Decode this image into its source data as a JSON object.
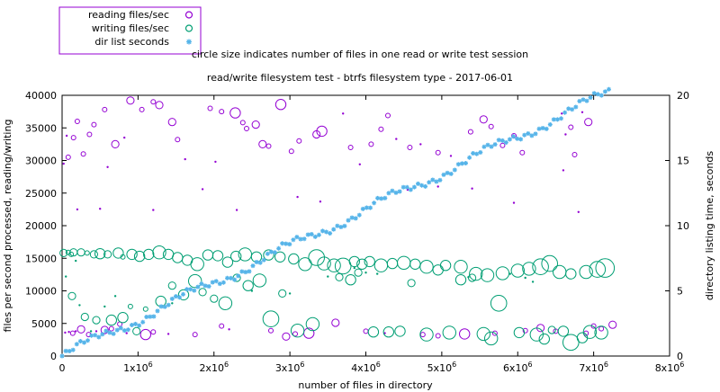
{
  "chart_data": {
    "type": "scatter",
    "title": "read/write filesystem test - btrfs filesystem type - 2017-06-01",
    "subtitle": "circle size indicates number of files in one read or write test session",
    "xlabel": "number of files in directory",
    "ylabel": "files per second processed, reading/writing",
    "y2label": "directory listing time, seconds",
    "xlim": [
      0,
      8000000
    ],
    "ylim": [
      0,
      40000
    ],
    "y2lim": [
      0,
      20
    ],
    "x_ticks": [
      {
        "value": 0,
        "base": "0",
        "exp": ""
      },
      {
        "value": 1000000,
        "base": "1x10",
        "exp": "6"
      },
      {
        "value": 2000000,
        "base": "2x10",
        "exp": "6"
      },
      {
        "value": 3000000,
        "base": "3x10",
        "exp": "6"
      },
      {
        "value": 4000000,
        "base": "4x10",
        "exp": "6"
      },
      {
        "value": 5000000,
        "base": "5x10",
        "exp": "6"
      },
      {
        "value": 6000000,
        "base": "6x10",
        "exp": "6"
      },
      {
        "value": 7000000,
        "base": "7x10",
        "exp": "6"
      },
      {
        "value": 8000000,
        "base": "8x10",
        "exp": "6"
      }
    ],
    "y_ticks": [
      "0",
      "5000",
      "10000",
      "15000",
      "20000",
      "25000",
      "30000",
      "35000",
      "40000"
    ],
    "y2_ticks": [
      "0",
      "5",
      "10",
      "15",
      "20"
    ],
    "legend_position": "top-left",
    "series": [
      {
        "name": "reading files/sec",
        "marker": "circle",
        "color": "#9400d3",
        "axis": "y",
        "points": [
          [
            40000,
            3600,
            1
          ],
          [
            90000,
            3700,
            1
          ],
          [
            140000,
            3500,
            2
          ],
          [
            180000,
            3800,
            1
          ],
          [
            250000,
            4100,
            3
          ],
          [
            350000,
            3300,
            2
          ],
          [
            450000,
            3800,
            1
          ],
          [
            560000,
            4000,
            3
          ],
          [
            650000,
            4200,
            2
          ],
          [
            760000,
            4900,
            2
          ],
          [
            850000,
            3500,
            1
          ],
          [
            1100000,
            3300,
            4
          ],
          [
            1200000,
            3700,
            2
          ],
          [
            1400000,
            3400,
            1
          ],
          [
            1750000,
            3300,
            2
          ],
          [
            2100000,
            4600,
            2
          ],
          [
            2200000,
            4100,
            1
          ],
          [
            2750000,
            3900,
            2
          ],
          [
            2950000,
            3000,
            3
          ],
          [
            3070000,
            3400,
            2
          ],
          [
            3250000,
            3500,
            4
          ],
          [
            3600000,
            5100,
            3
          ],
          [
            4000000,
            3800,
            2
          ],
          [
            4250000,
            3500,
            1
          ],
          [
            4750000,
            3300,
            2
          ],
          [
            4950000,
            3100,
            2
          ],
          [
            5300000,
            3400,
            4
          ],
          [
            5700000,
            3500,
            2
          ],
          [
            6100000,
            3900,
            2
          ],
          [
            6300000,
            4300,
            3
          ],
          [
            6500000,
            3800,
            2
          ],
          [
            6900000,
            3500,
            2
          ],
          [
            7000000,
            4600,
            2
          ],
          [
            7100000,
            4200,
            2
          ],
          [
            7250000,
            4800,
            3
          ],
          [
            20000,
            29500,
            1
          ],
          [
            60000,
            33800,
            1
          ],
          [
            80000,
            30500,
            2
          ],
          [
            150000,
            33500,
            2
          ],
          [
            200000,
            36000,
            2
          ],
          [
            280000,
            31000,
            2
          ],
          [
            360000,
            34000,
            2
          ],
          [
            420000,
            35500,
            2
          ],
          [
            560000,
            37800,
            2
          ],
          [
            600000,
            29000,
            1
          ],
          [
            700000,
            32500,
            3
          ],
          [
            820000,
            33500,
            1
          ],
          [
            900000,
            39200,
            3
          ],
          [
            1050000,
            37800,
            2
          ],
          [
            1200000,
            39000,
            2
          ],
          [
            1280000,
            38500,
            3
          ],
          [
            1450000,
            35900,
            3
          ],
          [
            1520000,
            33200,
            2
          ],
          [
            1620000,
            30200,
            1
          ],
          [
            1950000,
            38000,
            2
          ],
          [
            2020000,
            29800,
            1
          ],
          [
            2100000,
            37500,
            2
          ],
          [
            2280000,
            37300,
            4
          ],
          [
            2380000,
            35800,
            2
          ],
          [
            2430000,
            34900,
            2
          ],
          [
            2550000,
            35500,
            3
          ],
          [
            2640000,
            32500,
            3
          ],
          [
            2720000,
            32200,
            2
          ],
          [
            2880000,
            38600,
            4
          ],
          [
            3020000,
            31400,
            2
          ],
          [
            3120000,
            33000,
            2
          ],
          [
            3350000,
            34000,
            3
          ],
          [
            3420000,
            34500,
            4
          ],
          [
            3700000,
            37200,
            1
          ],
          [
            3800000,
            32000,
            2
          ],
          [
            3920000,
            29400,
            1
          ],
          [
            4070000,
            32500,
            2
          ],
          [
            4200000,
            34800,
            2
          ],
          [
            4290000,
            36900,
            2
          ],
          [
            4400000,
            33300,
            1
          ],
          [
            4580000,
            32000,
            2
          ],
          [
            4720000,
            32500,
            1
          ],
          [
            4950000,
            31200,
            2
          ],
          [
            5120000,
            30700,
            1
          ],
          [
            5380000,
            34400,
            2
          ],
          [
            5550000,
            36300,
            3
          ],
          [
            5650000,
            35200,
            2
          ],
          [
            5800000,
            32300,
            2
          ],
          [
            5950000,
            33800,
            2
          ],
          [
            6060000,
            31200,
            2
          ],
          [
            6580000,
            37200,
            1
          ],
          [
            6630000,
            34000,
            1
          ],
          [
            6700000,
            35100,
            2
          ],
          [
            6930000,
            35900,
            3
          ],
          [
            6850000,
            37400,
            1
          ],
          [
            6750000,
            30900,
            2
          ],
          [
            200000,
            22500,
            1
          ],
          [
            500000,
            22600,
            1
          ],
          [
            1200000,
            22400,
            1
          ],
          [
            1850000,
            25600,
            1
          ],
          [
            2300000,
            22400,
            1
          ],
          [
            3100000,
            24400,
            1
          ],
          [
            3400000,
            23700,
            1
          ],
          [
            4550000,
            25500,
            1
          ],
          [
            4950000,
            26000,
            1
          ],
          [
            5400000,
            25700,
            1
          ],
          [
            5950000,
            23500,
            1
          ],
          [
            6600000,
            28500,
            1
          ],
          [
            6800000,
            22100,
            1
          ]
        ]
      },
      {
        "name": "writing files/sec",
        "marker": "circle",
        "color": "#009e73",
        "axis": "y",
        "points": [
          [
            20000,
            15800,
            3
          ],
          [
            80000,
            15900,
            2
          ],
          [
            120000,
            15600,
            2
          ],
          [
            150000,
            15900,
            3
          ],
          [
            180000,
            14600,
            1
          ],
          [
            250000,
            15900,
            3
          ],
          [
            330000,
            15800,
            2
          ],
          [
            420000,
            15600,
            3
          ],
          [
            500000,
            15700,
            4
          ],
          [
            600000,
            15600,
            3
          ],
          [
            740000,
            15800,
            4
          ],
          [
            800000,
            15200,
            2
          ],
          [
            920000,
            15600,
            4
          ],
          [
            1020000,
            15300,
            4
          ],
          [
            1140000,
            15600,
            4
          ],
          [
            1280000,
            15900,
            5
          ],
          [
            1400000,
            15600,
            4
          ],
          [
            1520000,
            15100,
            4
          ],
          [
            1650000,
            14700,
            4
          ],
          [
            1780000,
            14100,
            5
          ],
          [
            1920000,
            15500,
            4
          ],
          [
            2050000,
            15400,
            4
          ],
          [
            2180000,
            14400,
            4
          ],
          [
            2290000,
            15300,
            4
          ],
          [
            2410000,
            15600,
            5
          ],
          [
            2560000,
            15200,
            4
          ],
          [
            2720000,
            15500,
            4
          ],
          [
            2870000,
            15200,
            4
          ],
          [
            3050000,
            14900,
            4
          ],
          [
            3200000,
            14100,
            5
          ],
          [
            3350000,
            15100,
            6
          ],
          [
            3450000,
            14200,
            5
          ],
          [
            3580000,
            13900,
            5
          ],
          [
            3700000,
            13800,
            6
          ],
          [
            3850000,
            14500,
            4
          ],
          [
            3950000,
            14100,
            4
          ],
          [
            4050000,
            14500,
            4
          ],
          [
            4200000,
            13900,
            5
          ],
          [
            4350000,
            14200,
            4
          ],
          [
            4500000,
            14300,
            5
          ],
          [
            4650000,
            14100,
            4
          ],
          [
            4800000,
            13700,
            5
          ],
          [
            4950000,
            13200,
            4
          ],
          [
            5050000,
            13900,
            4
          ],
          [
            5250000,
            13700,
            5
          ],
          [
            5450000,
            12600,
            5
          ],
          [
            5600000,
            12400,
            5
          ],
          [
            5800000,
            12700,
            5
          ],
          [
            6000000,
            13100,
            5
          ],
          [
            6150000,
            13400,
            5
          ],
          [
            6300000,
            13700,
            6
          ],
          [
            6420000,
            14200,
            6
          ],
          [
            6550000,
            12900,
            5
          ],
          [
            6700000,
            12600,
            4
          ],
          [
            6900000,
            12900,
            5
          ],
          [
            7050000,
            13300,
            6
          ],
          [
            7150000,
            13500,
            7
          ],
          [
            50000,
            12200,
            1
          ],
          [
            130000,
            9200,
            3
          ],
          [
            230000,
            7800,
            1
          ],
          [
            300000,
            6000,
            3
          ],
          [
            380000,
            3800,
            1
          ],
          [
            450000,
            5500,
            3
          ],
          [
            560000,
            7600,
            1
          ],
          [
            650000,
            5500,
            4
          ],
          [
            700000,
            9200,
            1
          ],
          [
            800000,
            5900,
            4
          ],
          [
            900000,
            7600,
            2
          ],
          [
            980000,
            3800,
            3
          ],
          [
            1100000,
            7200,
            2
          ],
          [
            1300000,
            8400,
            4
          ],
          [
            1450000,
            10800,
            3
          ],
          [
            1600000,
            9400,
            4
          ],
          [
            1750000,
            11500,
            5
          ],
          [
            1850000,
            9800,
            3
          ],
          [
            2000000,
            8800,
            3
          ],
          [
            2150000,
            8100,
            5
          ],
          [
            2300000,
            12000,
            3
          ],
          [
            2450000,
            10800,
            4
          ],
          [
            2600000,
            11600,
            5
          ],
          [
            2750000,
            5700,
            6
          ],
          [
            2900000,
            9600,
            3
          ],
          [
            3100000,
            3900,
            5
          ],
          [
            3300000,
            4900,
            5
          ],
          [
            3650000,
            12100,
            3
          ],
          [
            3800000,
            11700,
            4
          ],
          [
            3900000,
            12800,
            3
          ],
          [
            4100000,
            3700,
            4
          ],
          [
            4300000,
            3700,
            4
          ],
          [
            4450000,
            3800,
            4
          ],
          [
            4600000,
            11200,
            3
          ],
          [
            4800000,
            3300,
            5
          ],
          [
            5100000,
            3600,
            5
          ],
          [
            5250000,
            11700,
            4
          ],
          [
            5400000,
            12000,
            3
          ],
          [
            5550000,
            3400,
            5
          ],
          [
            5650000,
            2700,
            5
          ],
          [
            5750000,
            8100,
            6
          ],
          [
            6020000,
            3600,
            4
          ],
          [
            6250000,
            3300,
            5
          ],
          [
            6350000,
            2600,
            4
          ],
          [
            6450000,
            4000,
            3
          ],
          [
            6600000,
            3800,
            4
          ],
          [
            6700000,
            2100,
            6
          ],
          [
            6850000,
            2800,
            4
          ],
          [
            6950000,
            3700,
            5
          ],
          [
            7100000,
            3600,
            5
          ],
          [
            1450000,
            8100,
            1
          ],
          [
            2500000,
            10000,
            1
          ],
          [
            3000000,
            9600,
            1
          ],
          [
            3500000,
            12200,
            1
          ],
          [
            3850000,
            13500,
            1
          ],
          [
            4000000,
            12800,
            1
          ],
          [
            4150000,
            12600,
            1
          ],
          [
            5350000,
            12100,
            1
          ],
          [
            5900000,
            12600,
            1
          ],
          [
            6100000,
            12000,
            1
          ],
          [
            6200000,
            11400,
            1
          ]
        ]
      },
      {
        "name": "dir list seconds",
        "marker": "star",
        "color": "#56b4e9",
        "axis": "y2",
        "trend": {
          "start": [
            0,
            0
          ],
          "end": [
            7200000,
            20.2
          ],
          "count": 150,
          "wobble": 0.35
        }
      }
    ]
  }
}
